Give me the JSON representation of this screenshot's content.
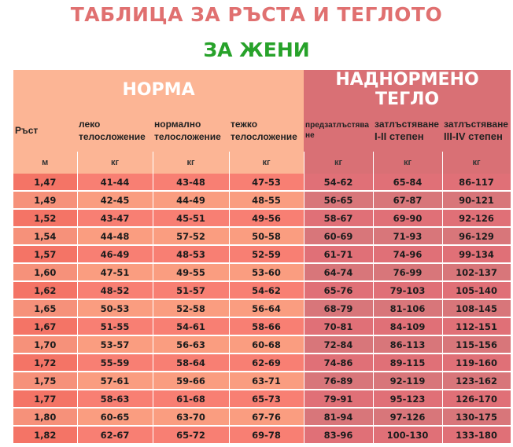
{
  "title": "ТАБЛИЦА ЗА РЪСТА И ТЕГЛОТО",
  "subtitle": "ЗА ЖЕНИ",
  "sections": {
    "norm": "НОРМА",
    "over": "НАДНОРМЕНО ТЕГЛО"
  },
  "columns": {
    "height": {
      "label": "Ръст",
      "unit": "м"
    },
    "light": {
      "label": "леко телосложение",
      "unit": "кг"
    },
    "normal": {
      "label": "нормално телосложение",
      "unit": "кг"
    },
    "heavy": {
      "label": "тежко телосложение",
      "unit": "кг"
    },
    "pre_obesity": {
      "label": "предзатлъстяване",
      "unit": "кг"
    },
    "obesity12": {
      "label": "затлъстяване",
      "sublabel": "I-II степен",
      "unit": "кг"
    },
    "obesity34": {
      "label": "затлъстяване",
      "sublabel": "III-IV степен",
      "unit": "кг"
    }
  },
  "rows": [
    [
      "1,47",
      "41-44",
      "43-48",
      "47-53",
      "54-62",
      "65-84",
      "86-117"
    ],
    [
      "1,49",
      "42-45",
      "44-49",
      "48-55",
      "56-65",
      "67-87",
      "90-121"
    ],
    [
      "1,52",
      "43-47",
      "45-51",
      "49-56",
      "58-67",
      "69-90",
      "92-126"
    ],
    [
      "1,54",
      "44-48",
      "57-52",
      "50-58",
      "60-69",
      "71-93",
      "96-129"
    ],
    [
      "1,57",
      "46-49",
      "48-53",
      "52-59",
      "61-71",
      "74-96",
      "99-134"
    ],
    [
      "1,60",
      "47-51",
      "49-55",
      "53-60",
      "64-74",
      "76-99",
      "102-137"
    ],
    [
      "1,62",
      "48-52",
      "51-57",
      "54-62",
      "65-76",
      "79-103",
      "105-140"
    ],
    [
      "1,65",
      "50-53",
      "52-58",
      "56-64",
      "68-79",
      "81-106",
      "108-145"
    ],
    [
      "1,67",
      "51-55",
      "54-61",
      "58-66",
      "70-81",
      "84-109",
      "112-151"
    ],
    [
      "1,70",
      "53-57",
      "56-63",
      "60-68",
      "72-84",
      "86-113",
      "115-156"
    ],
    [
      "1,72",
      "55-59",
      "58-64",
      "62-69",
      "74-86",
      "89-115",
      "119-160"
    ],
    [
      "1,75",
      "57-61",
      "59-66",
      "63-71",
      "76-89",
      "92-119",
      "123-162"
    ],
    [
      "1,77",
      "58-63",
      "61-68",
      "65-73",
      "79-91",
      "95-123",
      "126-170"
    ],
    [
      "1,80",
      "60-65",
      "63-70",
      "67-76",
      "81-94",
      "97-126",
      "130-175"
    ],
    [
      "1,82",
      "62-67",
      "65-72",
      "69-78",
      "83-96",
      "100-130",
      "133-180"
    ]
  ]
}
